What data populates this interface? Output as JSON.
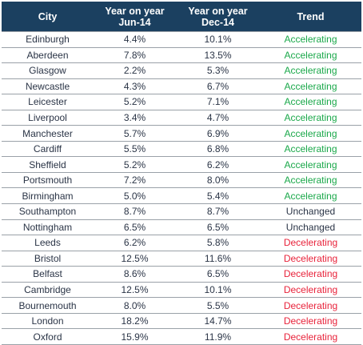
{
  "headers": {
    "city": "City",
    "jun": [
      "Year on year",
      "Jun-14"
    ],
    "dec": [
      "Year on year",
      "Dec-14"
    ],
    "trend": "Trend"
  },
  "colors": {
    "header_bg": "#1b4060",
    "accelerating": "#1aa84a",
    "unchanged": "#2a3446",
    "decelerating": "#e8233b"
  },
  "rows": [
    {
      "city": "Edinburgh",
      "jun": "4.4%",
      "dec": "10.1%",
      "trend": "Accelerating"
    },
    {
      "city": "Aberdeen",
      "jun": "7.8%",
      "dec": "13.5%",
      "trend": "Accelerating"
    },
    {
      "city": "Glasgow",
      "jun": "2.2%",
      "dec": "5.3%",
      "trend": "Accelerating"
    },
    {
      "city": "Newcastle",
      "jun": "4.3%",
      "dec": "6.7%",
      "trend": "Accelerating"
    },
    {
      "city": "Leicester",
      "jun": "5.2%",
      "dec": "7.1%",
      "trend": "Accelerating"
    },
    {
      "city": "Liverpool",
      "jun": "3.4%",
      "dec": "4.7%",
      "trend": "Accelerating"
    },
    {
      "city": "Manchester",
      "jun": "5.7%",
      "dec": "6.9%",
      "trend": "Accelerating"
    },
    {
      "city": "Cardiff",
      "jun": "5.5%",
      "dec": "6.8%",
      "trend": "Accelerating"
    },
    {
      "city": "Sheffield",
      "jun": "5.2%",
      "dec": "6.2%",
      "trend": "Accelerating"
    },
    {
      "city": "Portsmouth",
      "jun": "7.2%",
      "dec": "8.0%",
      "trend": "Accelerating"
    },
    {
      "city": "Birmingham",
      "jun": "5.0%",
      "dec": "5.4%",
      "trend": "Accelerating"
    },
    {
      "city": "Southampton",
      "jun": "8.7%",
      "dec": "8.7%",
      "trend": "Unchanged"
    },
    {
      "city": "Nottingham",
      "jun": "6.5%",
      "dec": "6.5%",
      "trend": "Unchanged"
    },
    {
      "city": "Leeds",
      "jun": "6.2%",
      "dec": "5.8%",
      "trend": "Decelerating"
    },
    {
      "city": "Bristol",
      "jun": "12.5%",
      "dec": "11.6%",
      "trend": "Decelerating"
    },
    {
      "city": "Belfast",
      "jun": "8.6%",
      "dec": "6.5%",
      "trend": "Decelerating"
    },
    {
      "city": "Cambridge",
      "jun": "12.5%",
      "dec": "10.1%",
      "trend": "Decelerating"
    },
    {
      "city": "Bournemouth",
      "jun": "8.0%",
      "dec": "5.5%",
      "trend": "Decelerating"
    },
    {
      "city": "London",
      "jun": "18.2%",
      "dec": "14.7%",
      "trend": "Decelerating"
    },
    {
      "city": "Oxford",
      "jun": "15.9%",
      "dec": "11.9%",
      "trend": "Decelerating"
    }
  ]
}
